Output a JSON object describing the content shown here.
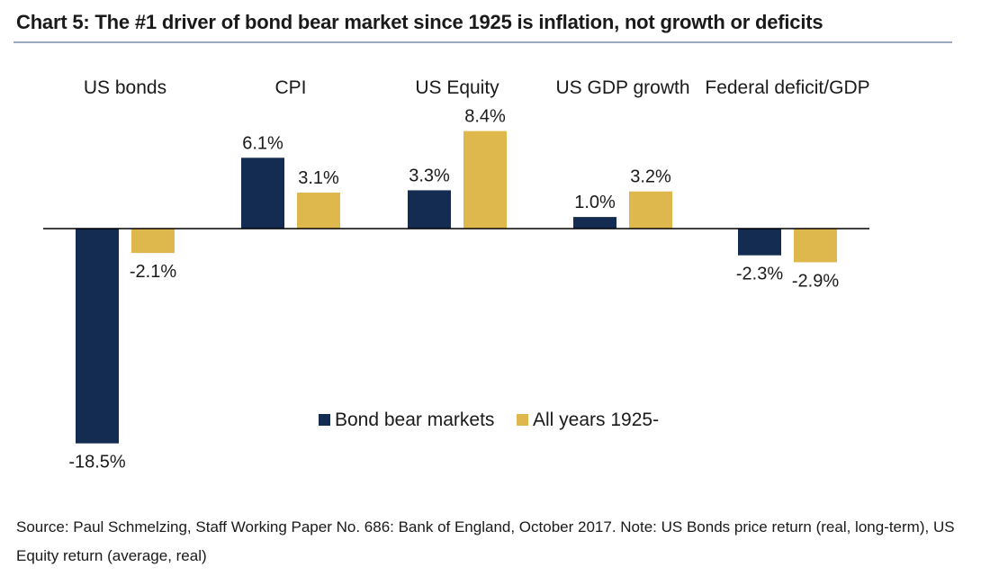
{
  "title": "Chart 5: The #1 driver of bond bear market since 1925 is inflation, not growth or deficits",
  "source_note": "Source: Paul Schmelzing, Staff Working Paper No. 686: Bank of England, October 2017. Note: US Bonds price return (real, long-term), US Equity return (average, real)",
  "colors": {
    "bond_bear": "#142c52",
    "all_years": "#dfb84d",
    "axis": "#000000",
    "text": "#1a1a1a"
  },
  "chart_data": {
    "type": "bar",
    "title": "Chart 5: The #1 driver of bond bear market since 1925 is inflation, not growth or deficits",
    "categories": [
      "US bonds",
      "CPI",
      "US Equity",
      "US GDP growth",
      "Federal deficit/GDP"
    ],
    "series": [
      {
        "name": "Bond bear markets",
        "values": [
          -18.5,
          6.1,
          3.3,
          1.0,
          -2.3
        ],
        "labels": [
          "-18.5%",
          "6.1%",
          "3.3%",
          "1.0%",
          "-2.3%"
        ]
      },
      {
        "name": "All years 1925-",
        "values": [
          -2.1,
          3.1,
          8.4,
          3.2,
          -2.9
        ],
        "labels": [
          "-2.1%",
          "3.1%",
          "8.4%",
          "3.2%",
          "-2.9%"
        ]
      }
    ],
    "xlabel": "",
    "ylabel": "",
    "ylim": [
      -20,
      10
    ],
    "grid": false,
    "legend": "bottom-center, inside plot"
  }
}
